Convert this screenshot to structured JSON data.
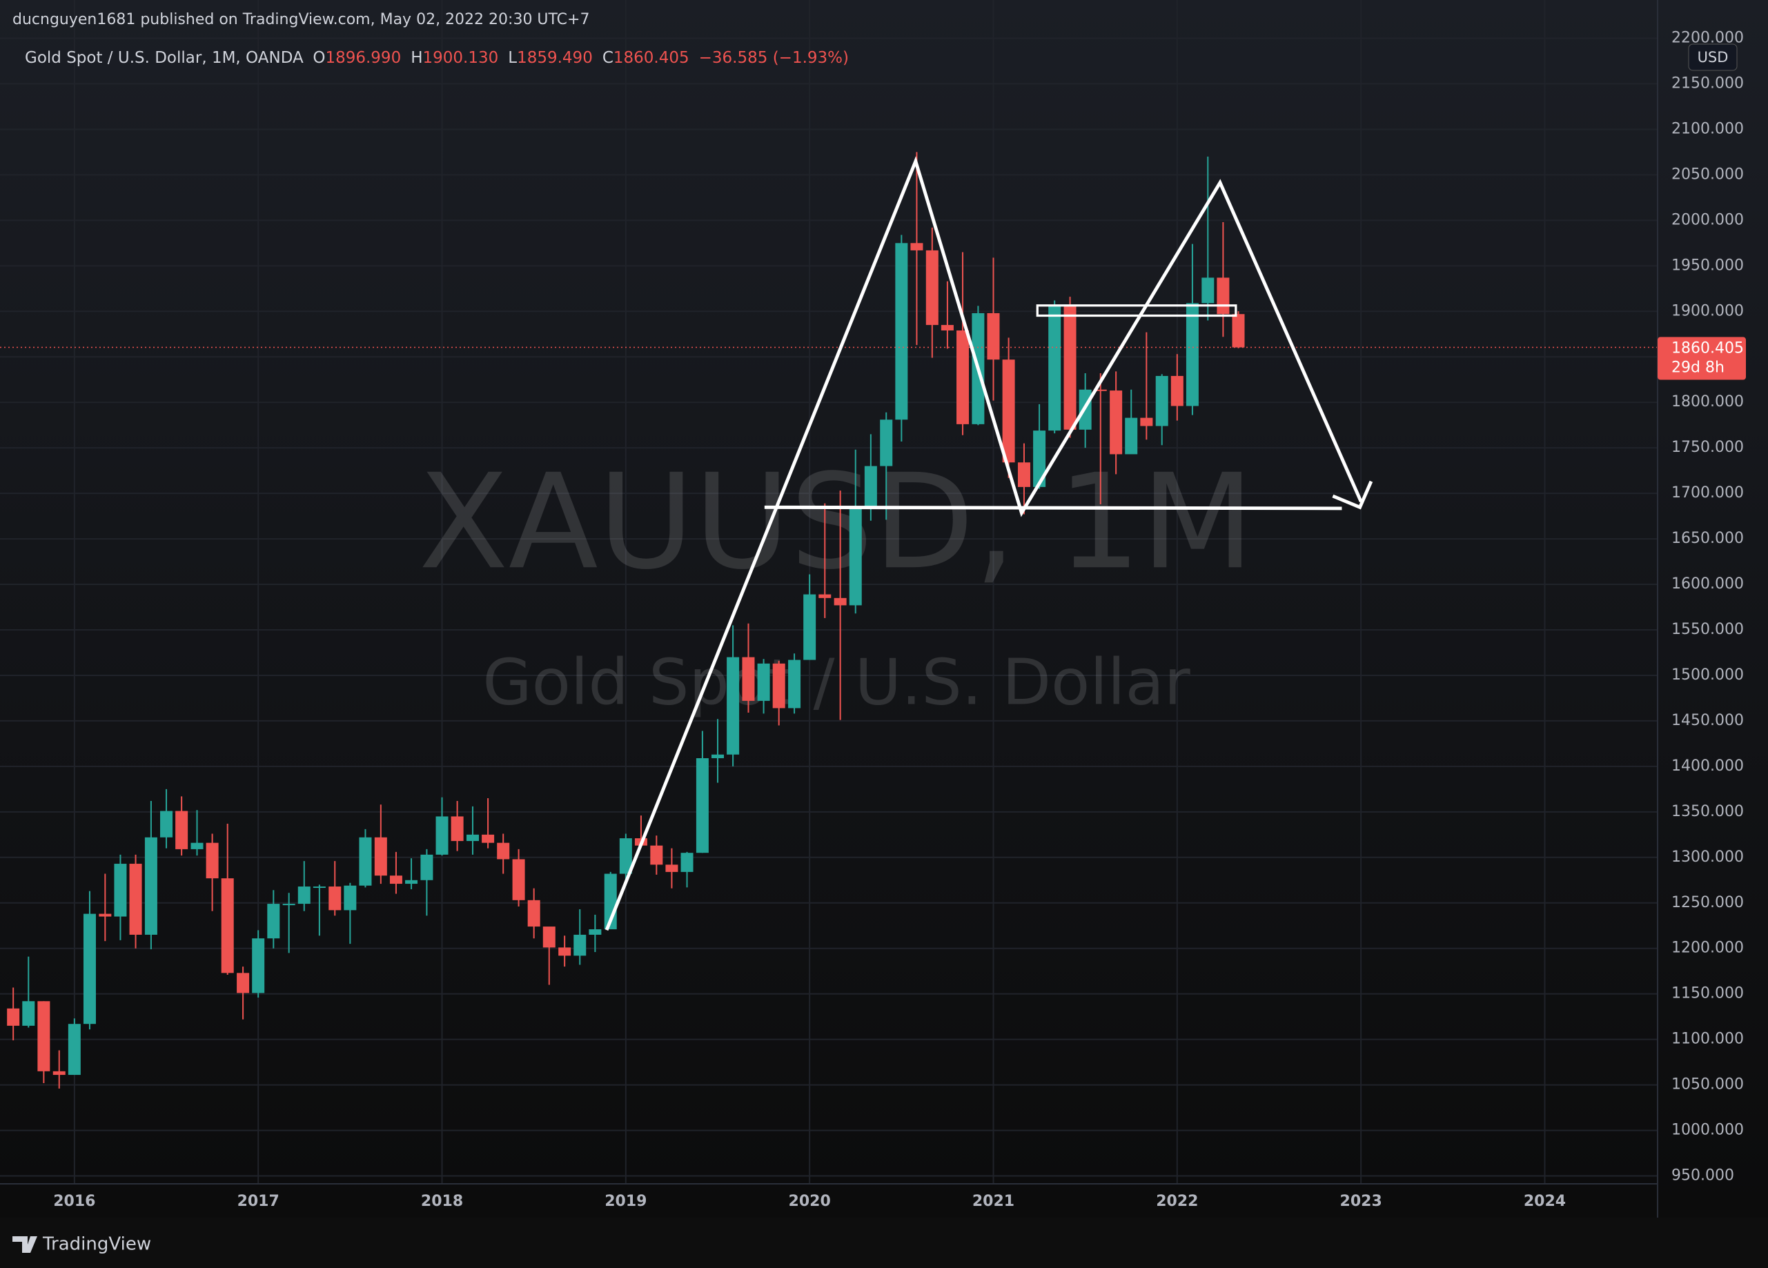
{
  "header": {
    "published": "ducnguyen1681 published on TradingView.com, May 02, 2022 20:30 UTC+7",
    "brand": "TradingView"
  },
  "legend": {
    "title": "Gold Spot / U.S. Dollar, 1M, OANDA",
    "items": [
      {
        "key": "O",
        "text": "1896.990"
      },
      {
        "key": "H",
        "text": "1900.130"
      },
      {
        "key": "L",
        "text": "1859.490"
      },
      {
        "key": "C",
        "text": "1860.405"
      }
    ],
    "change": "−36.585 (−1.93%)"
  },
  "watermark": {
    "symbol": "XAUUSD, 1M",
    "description": "Gold Spot / U.S. Dollar"
  },
  "chart_data": {
    "type": "candlestick",
    "currency": "USD",
    "countdown": "29d 8h",
    "up_color": "#26a69a",
    "down_color": "#ef5350",
    "grid": true,
    "x": [
      2015.667,
      2015.75,
      2015.833,
      2015.917,
      2016,
      2016.083,
      2016.167,
      2016.25,
      2016.333,
      2016.417,
      2016.5,
      2016.583,
      2016.667,
      2016.75,
      2016.833,
      2016.917,
      2017,
      2017.083,
      2017.167,
      2017.25,
      2017.333,
      2017.417,
      2017.5,
      2017.583,
      2017.667,
      2017.75,
      2017.833,
      2017.917,
      2018,
      2018.083,
      2018.167,
      2018.25,
      2018.333,
      2018.417,
      2018.5,
      2018.583,
      2018.667,
      2018.75,
      2018.833,
      2018.917,
      2019,
      2019.083,
      2019.167,
      2019.25,
      2019.333,
      2019.417,
      2019.5,
      2019.583,
      2019.667,
      2019.75,
      2019.833,
      2019.917,
      2020,
      2020.083,
      2020.167,
      2020.25,
      2020.333,
      2020.417,
      2020.5,
      2020.583,
      2020.667,
      2020.75,
      2020.833,
      2020.917,
      2021,
      2021.083,
      2021.167,
      2021.25,
      2021.333,
      2021.417,
      2021.5,
      2021.583,
      2021.667,
      2021.75,
      2021.833,
      2021.917,
      2022,
      2022.083,
      2022.167,
      2022.25,
      2022.333
    ],
    "open": [
      1134,
      1115,
      1142,
      1065,
      1061,
      1117,
      1238,
      1235,
      1293,
      1215,
      1322,
      1351,
      1309,
      1316,
      1277,
      1173,
      1151,
      1211,
      1249,
      1249,
      1268,
      1268,
      1242,
      1269,
      1322,
      1280,
      1271,
      1275,
      1303,
      1345,
      1318,
      1325,
      1316,
      1298,
      1253,
      1224,
      1201,
      1192,
      1215,
      1221,
      1282,
      1321,
      1313,
      1292,
      1284,
      1305,
      1409,
      1413,
      1520,
      1472,
      1513,
      1464,
      1517,
      1589,
      1585,
      1577,
      1686,
      1730,
      1781,
      1975,
      1967,
      1885,
      1879,
      1776,
      1898,
      1847,
      1734,
      1707,
      1769,
      1906,
      1770,
      1814,
      1813,
      1743,
      1783,
      1774,
      1829,
      1796,
      1909,
      1937,
      1896.99
    ],
    "high": [
      1157,
      1191,
      1142,
      1088,
      1123,
      1263,
      1282,
      1303,
      1303,
      1362,
      1375,
      1367,
      1352,
      1326,
      1337,
      1180,
      1220,
      1264,
      1261,
      1296,
      1270,
      1296,
      1272,
      1331,
      1358,
      1306,
      1299,
      1309,
      1366,
      1362,
      1356,
      1365,
      1326,
      1309,
      1266,
      1223,
      1214,
      1243,
      1237,
      1284,
      1326,
      1346,
      1324,
      1310,
      1306,
      1439,
      1452,
      1555,
      1557,
      1518,
      1516,
      1524,
      1611,
      1689,
      1703,
      1748,
      1765,
      1789,
      1984,
      2075,
      1992,
      1933,
      1965,
      1906,
      1959,
      1871,
      1755,
      1798,
      1912,
      1916,
      1832,
      1832,
      1834,
      1814,
      1877,
      1831,
      1853,
      1974,
      2070,
      1998,
      1900.13
    ],
    "low": [
      1099,
      1113,
      1052,
      1046,
      1062,
      1111,
      1208,
      1209,
      1200,
      1199,
      1310,
      1302,
      1302,
      1241,
      1171,
      1122,
      1146,
      1200,
      1195,
      1241,
      1214,
      1236,
      1205,
      1267,
      1271,
      1260,
      1265,
      1236,
      1302,
      1307,
      1303,
      1310,
      1282,
      1246,
      1211,
      1160,
      1180,
      1182,
      1196,
      1221,
      1269,
      1311,
      1281,
      1266,
      1267,
      1305,
      1382,
      1400,
      1459,
      1458,
      1445,
      1458,
      1517,
      1563,
      1451,
      1568,
      1670,
      1671,
      1757,
      1863,
      1849,
      1859,
      1764,
      1775,
      1802,
      1717,
      1677,
      1705,
      1766,
      1761,
      1750,
      1688,
      1721,
      1746,
      1759,
      1753,
      1780,
      1786,
      1890,
      1872,
      1859.49
    ],
    "close": [
      1115,
      1142,
      1065,
      1061,
      1117,
      1238,
      1235,
      1293,
      1215,
      1322,
      1351,
      1309,
      1316,
      1277,
      1173,
      1151,
      1211,
      1249,
      1249,
      1268,
      1268,
      1242,
      1269,
      1322,
      1280,
      1271,
      1275,
      1303,
      1345,
      1318,
      1325,
      1316,
      1298,
      1253,
      1224,
      1201,
      1192,
      1215,
      1221,
      1282,
      1321,
      1313,
      1292,
      1284,
      1305,
      1409,
      1413,
      1520,
      1472,
      1513,
      1464,
      1517,
      1589,
      1585,
      1577,
      1686,
      1730,
      1781,
      1975,
      1967,
      1885,
      1879,
      1776,
      1898,
      1847,
      1734,
      1707,
      1769,
      1906,
      1770,
      1814,
      1813,
      1743,
      1783,
      1774,
      1829,
      1796,
      1909,
      1937,
      1897,
      1860.405
    ],
    "xlim": [
      2015.595,
      2024.614
    ],
    "xticks": [
      2016,
      2017,
      2018,
      2019,
      2020,
      2021,
      2022,
      2023,
      2024
    ],
    "ylim": [
      941.3,
      2242.1
    ],
    "yticks": [
      {
        "value": 950,
        "label": "950.000"
      },
      {
        "value": 1000,
        "label": "1000.000"
      },
      {
        "value": 1050,
        "label": "1050.000"
      },
      {
        "value": 1100,
        "label": "1100.000"
      },
      {
        "value": 1150,
        "label": "1150.000"
      },
      {
        "value": 1200,
        "label": "1200.000"
      },
      {
        "value": 1250,
        "label": "1250.000"
      },
      {
        "value": 1300,
        "label": "1300.000"
      },
      {
        "value": 1350,
        "label": "1350.000"
      },
      {
        "value": 1400,
        "label": "1400.000"
      },
      {
        "value": 1450,
        "label": "1450.000"
      },
      {
        "value": 1500,
        "label": "1500.000"
      },
      {
        "value": 1550,
        "label": "1550.000"
      },
      {
        "value": 1600,
        "label": "1600.000"
      },
      {
        "value": 1650,
        "label": "1650.000"
      },
      {
        "value": 1700,
        "label": "1700.000"
      },
      {
        "value": 1750,
        "label": "1750.000"
      },
      {
        "value": 1800,
        "label": "1800.000"
      },
      {
        "value": 1850,
        "label": "1850.000"
      },
      {
        "value": 1900,
        "label": "1900.000"
      },
      {
        "value": 1950,
        "label": "1950.000"
      },
      {
        "value": 2000,
        "label": "2000.000"
      },
      {
        "value": 2050,
        "label": "2050.000"
      },
      {
        "value": 2100,
        "label": "2100.000"
      },
      {
        "value": 2150,
        "label": "2150.000"
      },
      {
        "value": 2200,
        "label": "2200.000"
      }
    ]
  }
}
